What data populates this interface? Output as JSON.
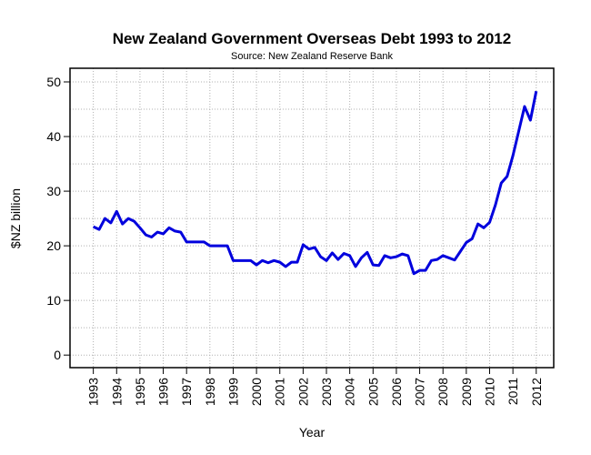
{
  "chart_data": {
    "type": "line",
    "title": "New Zealand Government Overseas Debt 1993 to 2012",
    "subtitle": "Source: New Zealand Reserve Bank",
    "x_label": "Year",
    "y_label": "$NZ billion",
    "x": [
      1993,
      1993.25,
      1993.5,
      1993.75,
      1994,
      1994.25,
      1994.5,
      1994.75,
      1995,
      1995.25,
      1995.5,
      1995.75,
      1996,
      1996.25,
      1996.5,
      1996.75,
      1997,
      1997.25,
      1997.5,
      1997.75,
      1998,
      1998.25,
      1998.5,
      1998.75,
      1999,
      1999.25,
      1999.5,
      1999.75,
      2000,
      2000.25,
      2000.5,
      2000.75,
      2001,
      2001.25,
      2001.5,
      2001.75,
      2002,
      2002.25,
      2002.5,
      2002.75,
      2003,
      2003.25,
      2003.5,
      2003.75,
      2004,
      2004.25,
      2004.5,
      2004.75,
      2005,
      2005.25,
      2005.5,
      2005.75,
      2006,
      2006.25,
      2006.5,
      2006.75,
      2007,
      2007.25,
      2007.5,
      2007.75,
      2008,
      2008.25,
      2008.5,
      2008.75,
      2009,
      2009.25,
      2009.5,
      2009.75,
      2010,
      2010.25,
      2010.5,
      2010.75,
      2011,
      2011.25,
      2011.5,
      2011.75,
      2012
    ],
    "series": [
      {
        "name": "Overseas debt",
        "color": "#0000dd",
        "values": [
          23.5,
          23.0,
          25.0,
          24.2,
          26.3,
          24.0,
          25.0,
          24.5,
          23.3,
          22.0,
          21.6,
          22.5,
          22.2,
          23.3,
          22.7,
          22.5,
          20.7,
          20.7,
          20.7,
          20.7,
          20.0,
          20.0,
          20.0,
          20.0,
          17.3,
          17.3,
          17.3,
          17.3,
          16.5,
          17.3,
          16.9,
          17.3,
          17.0,
          16.2,
          17.0,
          17.0,
          20.2,
          19.4,
          19.7,
          18.0,
          17.3,
          18.7,
          17.5,
          18.6,
          18.2,
          16.2,
          17.8,
          18.8,
          16.5,
          16.4,
          18.2,
          17.8,
          18.0,
          18.5,
          18.2,
          14.9,
          15.5,
          15.5,
          17.3,
          17.5,
          18.2,
          17.8,
          17.4,
          19.0,
          20.6,
          21.3,
          24.0,
          23.3,
          24.3,
          27.5,
          31.5,
          32.7,
          36.5,
          41.0,
          45.5,
          43.0,
          48.3
        ]
      }
    ],
    "xlim": [
      1992,
      2012.75
    ],
    "ylim": [
      -2.3,
      52.5
    ],
    "xticks": [
      1993,
      1994,
      1995,
      1996,
      1997,
      1998,
      1999,
      2000,
      2001,
      2002,
      2003,
      2004,
      2005,
      2006,
      2007,
      2008,
      2009,
      2010,
      2011,
      2012
    ],
    "yticks": [
      0,
      10,
      20,
      30,
      40,
      50
    ],
    "ygrid": [
      0,
      5,
      10,
      15,
      20,
      25,
      30,
      35,
      40,
      45,
      50
    ],
    "grid": true
  }
}
